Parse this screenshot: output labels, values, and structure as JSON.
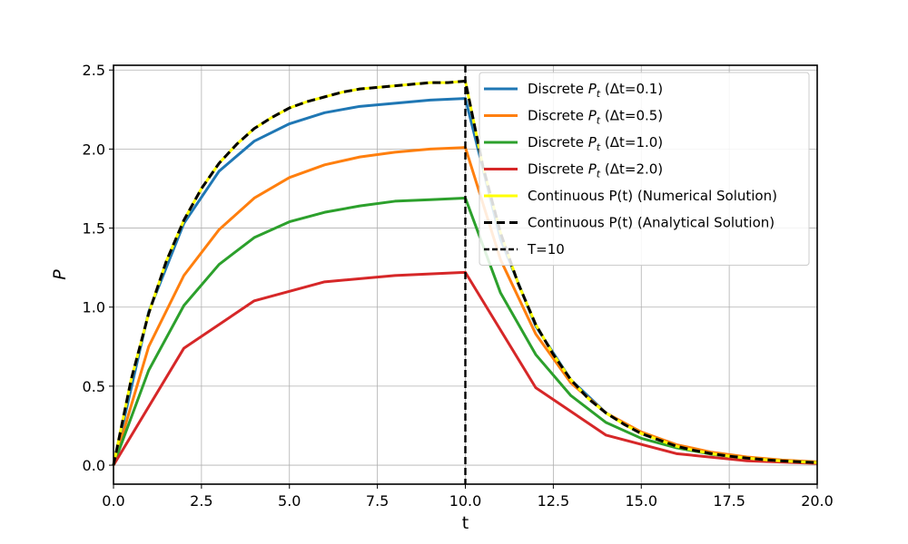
{
  "chart_data": {
    "type": "line",
    "title": "",
    "xlabel": "t",
    "ylabel": "P",
    "xlim": [
      0,
      20
    ],
    "ylim": [
      -0.12,
      2.53
    ],
    "xticks": [
      0,
      2.5,
      5,
      7.5,
      10,
      12.5,
      15,
      17.5,
      20
    ],
    "xtick_labels": [
      "0.0",
      "2.5",
      "5.0",
      "7.5",
      "10.0",
      "12.5",
      "15.0",
      "17.5",
      "20.0"
    ],
    "yticks": [
      0,
      0.5,
      1,
      1.5,
      2,
      2.5
    ],
    "ytick_labels": [
      "0.0",
      "0.5",
      "1.0",
      "1.5",
      "2.0",
      "2.5"
    ],
    "grid": true,
    "legend_position": "upper-right",
    "vline": {
      "x": 10,
      "label": "T=10",
      "color": "#000000",
      "style": "dashed"
    },
    "series": [
      {
        "name": "discrete-dt-0.1",
        "label_prefix": "Discrete ",
        "label_math": "P",
        "label_sub": "t",
        "label_suffix": " (Δt=0.1)",
        "color": "#1f77b4",
        "style": "solid",
        "x": [
          0,
          1,
          2,
          3,
          4,
          5,
          6,
          7,
          8,
          9,
          10,
          11,
          12,
          13,
          14,
          15,
          16,
          17,
          18,
          19,
          20
        ],
        "y": [
          0,
          0.97,
          1.53,
          1.86,
          2.05,
          2.16,
          2.23,
          2.27,
          2.29,
          2.31,
          2.32,
          1.43,
          0.88,
          0.54,
          0.33,
          0.2,
          0.12,
          0.077,
          0.047,
          0.029,
          0.018
        ]
      },
      {
        "name": "discrete-dt-0.5",
        "label_prefix": "Discrete ",
        "label_math": "P",
        "label_sub": "t",
        "label_suffix": " (Δt=0.5)",
        "color": "#ff7f0e",
        "style": "solid",
        "x": [
          0,
          1,
          2,
          3,
          4,
          5,
          6,
          7,
          8,
          9,
          10,
          11,
          12,
          13,
          14,
          15,
          16,
          17,
          18,
          19,
          20
        ],
        "y": [
          0,
          0.75,
          1.2,
          1.49,
          1.69,
          1.82,
          1.9,
          1.95,
          1.98,
          2.0,
          2.01,
          1.3,
          0.83,
          0.52,
          0.33,
          0.21,
          0.13,
          0.082,
          0.052,
          0.033,
          0.021
        ]
      },
      {
        "name": "discrete-dt-1.0",
        "label_prefix": "Discrete ",
        "label_math": "P",
        "label_sub": "t",
        "label_suffix": " (Δt=1.0)",
        "color": "#2ca02c",
        "style": "solid",
        "x": [
          0,
          1,
          2,
          3,
          4,
          5,
          6,
          7,
          8,
          9,
          10,
          11,
          12,
          13,
          14,
          15,
          16,
          17,
          18,
          19,
          20
        ],
        "y": [
          0,
          0.6,
          1.01,
          1.27,
          1.44,
          1.54,
          1.6,
          1.64,
          1.67,
          1.68,
          1.69,
          1.09,
          0.7,
          0.44,
          0.27,
          0.17,
          0.11,
          0.069,
          0.043,
          0.027,
          0.017
        ]
      },
      {
        "name": "discrete-dt-2.0",
        "label_prefix": "Discrete ",
        "label_math": "P",
        "label_sub": "t",
        "label_suffix": " (Δt=2.0)",
        "color": "#d62728",
        "style": "solid",
        "x": [
          0,
          2,
          4,
          6,
          8,
          10,
          12,
          14,
          16,
          18,
          20
        ],
        "y": [
          0,
          0.74,
          1.04,
          1.16,
          1.2,
          1.22,
          0.49,
          0.19,
          0.073,
          0.028,
          0.011
        ]
      },
      {
        "name": "continuous-numerical",
        "label": "Continuous P(t) (Numerical Solution)",
        "color": "#ffff00",
        "style": "solid",
        "x": [
          0,
          0.5,
          1,
          1.5,
          2,
          2.5,
          3,
          3.5,
          4,
          4.5,
          5,
          5.5,
          6,
          6.5,
          7,
          7.5,
          8,
          8.5,
          9,
          9.5,
          10,
          10.5,
          11,
          11.5,
          12,
          12.5,
          13,
          13.5,
          14,
          14.5,
          15,
          15.5,
          16,
          16.5,
          17,
          17.5,
          18,
          18.5,
          19,
          19.5,
          20
        ],
        "y": [
          0,
          0.54,
          0.96,
          1.29,
          1.55,
          1.75,
          1.91,
          2.03,
          2.13,
          2.2,
          2.26,
          2.3,
          2.33,
          2.36,
          2.38,
          2.39,
          2.4,
          2.41,
          2.42,
          2.42,
          2.43,
          1.89,
          1.47,
          1.15,
          0.89,
          0.7,
          0.54,
          0.42,
          0.33,
          0.26,
          0.2,
          0.16,
          0.12,
          0.094,
          0.073,
          0.057,
          0.045,
          0.035,
          0.027,
          0.021,
          0.016
        ]
      },
      {
        "name": "continuous-analytical",
        "label": "Continuous P(t) (Analytical Solution)",
        "color": "#000000",
        "style": "dashed",
        "x": [
          0,
          0.5,
          1,
          1.5,
          2,
          2.5,
          3,
          3.5,
          4,
          4.5,
          5,
          5.5,
          6,
          6.5,
          7,
          7.5,
          8,
          8.5,
          9,
          9.5,
          10,
          10.5,
          11,
          11.5,
          12,
          12.5,
          13,
          13.5,
          14,
          14.5,
          15,
          15.5,
          16,
          16.5,
          17,
          17.5,
          18,
          18.5,
          19,
          19.5,
          20
        ],
        "y": [
          0,
          0.54,
          0.96,
          1.29,
          1.55,
          1.75,
          1.91,
          2.03,
          2.13,
          2.2,
          2.26,
          2.3,
          2.33,
          2.36,
          2.38,
          2.39,
          2.4,
          2.41,
          2.42,
          2.42,
          2.43,
          1.89,
          1.47,
          1.15,
          0.89,
          0.7,
          0.54,
          0.42,
          0.33,
          0.26,
          0.2,
          0.16,
          0.12,
          0.094,
          0.073,
          0.057,
          0.045,
          0.035,
          0.027,
          0.021,
          0.016
        ]
      }
    ]
  }
}
